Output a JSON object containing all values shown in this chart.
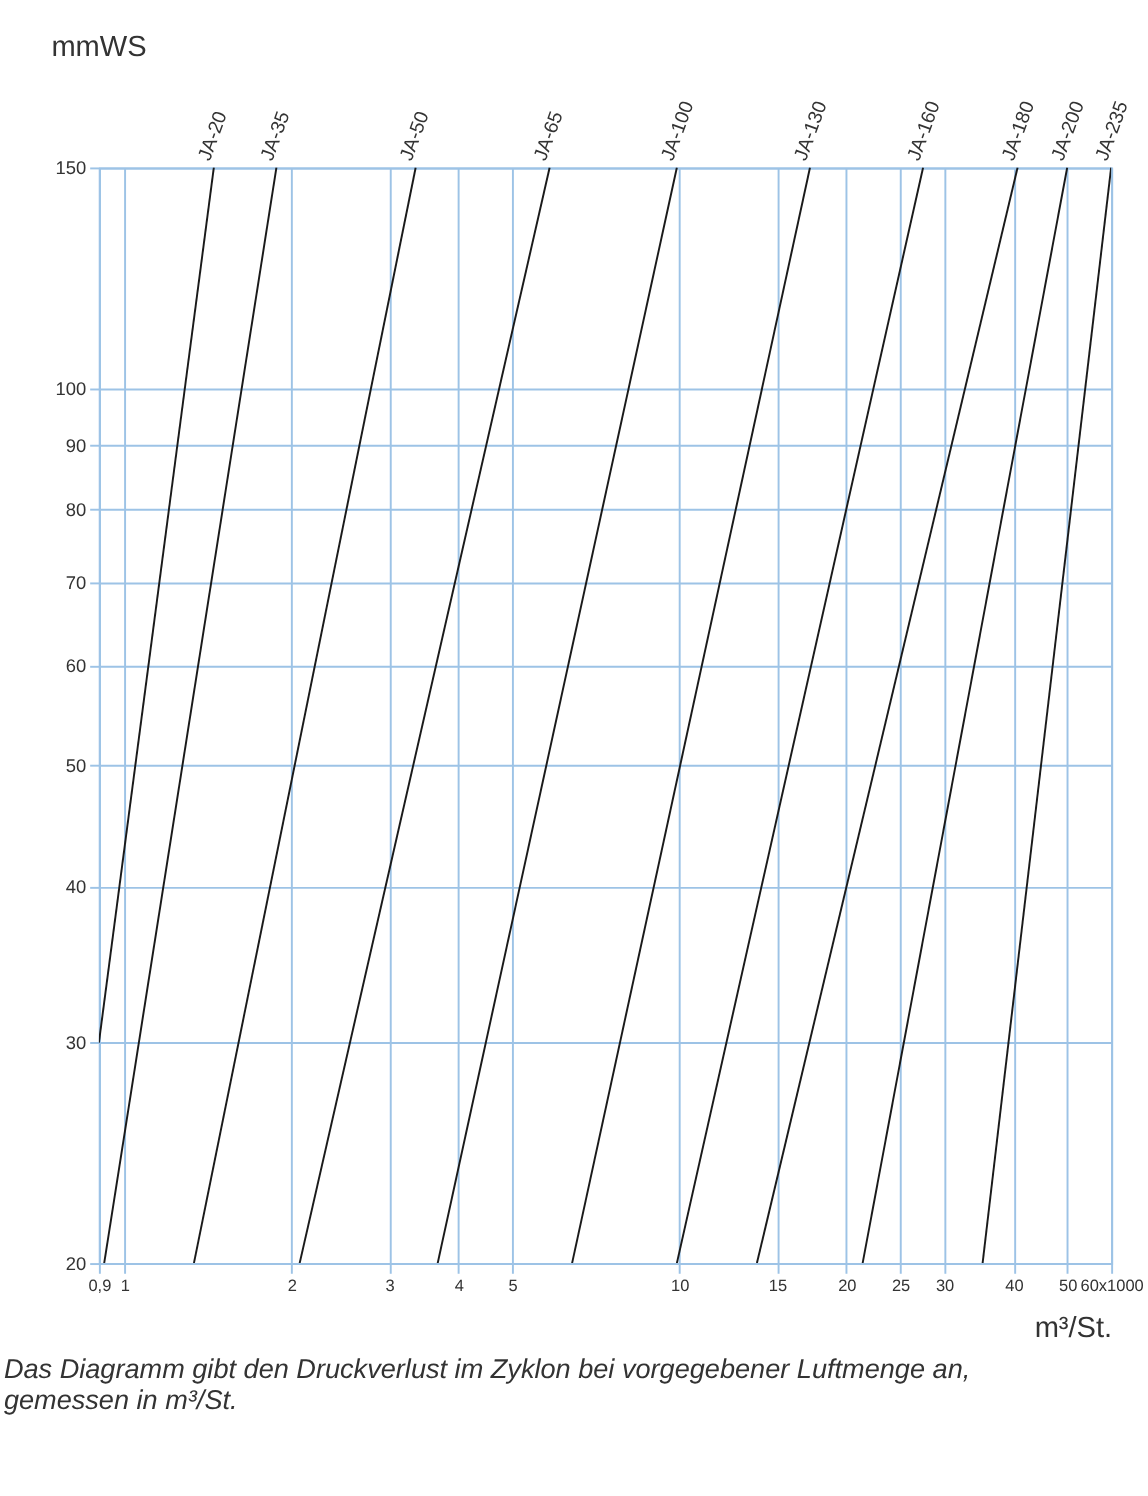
{
  "chart_data": {
    "type": "line",
    "xlabel": "m³/St.",
    "ylabel": "mmWS",
    "annotations": [
      "Das Diagramm gibt den Druckverlust im Zyklon bei vorgegebener Luftmenge an, gemessen in m³/St."
    ],
    "log": "xy",
    "grid": true,
    "legend": false,
    "marker": "none",
    "line_style": "solid",
    "xlim": [
      0.9,
      60
    ],
    "ylim": [
      20,
      150
    ],
    "xticks": [
      {
        "value": 0.9,
        "label": "0,9"
      },
      1,
      2,
      3,
      4,
      5,
      10,
      15,
      20,
      25,
      30,
      40,
      50,
      {
        "value": 60,
        "label": "60x1000"
      }
    ],
    "yticks": [
      20,
      30,
      40,
      50,
      60,
      70,
      80,
      90,
      100,
      150
    ],
    "series": [
      {
        "name": "JA-20",
        "color": "#1a1a1a",
        "x": [
          0.9,
          1.45
        ],
        "values": [
          30,
          150
        ]
      },
      {
        "name": "JA-35",
        "color": "#1a1a1a",
        "x": [
          0.92,
          1.88
        ],
        "values": [
          20,
          150
        ]
      },
      {
        "name": "JA-50",
        "color": "#1a1a1a",
        "x": [
          1.335,
          3.35
        ],
        "values": [
          20,
          150
        ]
      },
      {
        "name": "JA-65",
        "color": "#1a1a1a",
        "x": [
          2.07,
          5.84
        ],
        "values": [
          20,
          150
        ]
      },
      {
        "name": "JA-100",
        "color": "#1a1a1a",
        "x": [
          3.67,
          9.9
        ],
        "values": [
          20,
          150
        ]
      },
      {
        "name": "JA-130",
        "color": "#1a1a1a",
        "x": [
          6.41,
          17.2
        ],
        "values": [
          20,
          150
        ]
      },
      {
        "name": "JA-160",
        "color": "#1a1a1a",
        "x": [
          9.9,
          27.5
        ],
        "values": [
          20,
          150
        ]
      },
      {
        "name": "JA-180",
        "color": "#1a1a1a",
        "x": [
          13.8,
          40.7
        ],
        "values": [
          20,
          150
        ]
      },
      {
        "name": "JA-200",
        "color": "#1a1a1a",
        "x": [
          21.4,
          50
        ],
        "values": [
          20,
          150
        ]
      },
      {
        "name": "JA-235",
        "color": "#1a1a1a",
        "x": [
          35.2,
          60
        ],
        "values": [
          20,
          150
        ]
      }
    ]
  }
}
